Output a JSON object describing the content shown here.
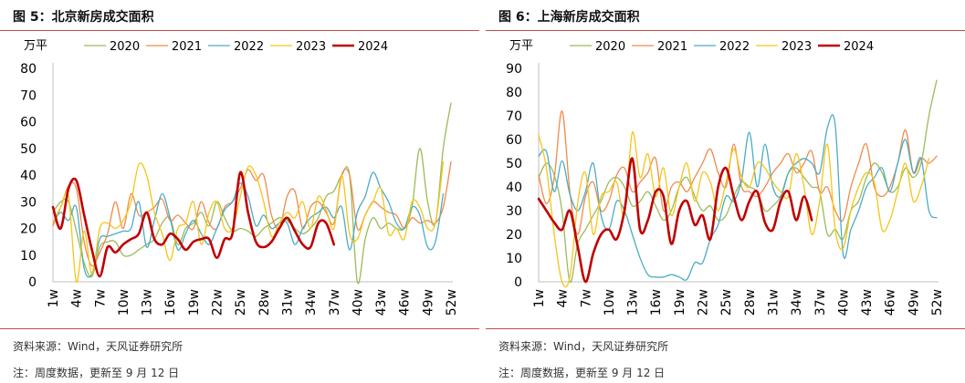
{
  "panels": [
    {
      "title": "图 5：北京新房成交面积",
      "source": "资料来源：Wind，天风证券研究所",
      "note": "注：周度数据，更新至 9 月 12 日",
      "chart_data": {
        "type": "line",
        "yunit": "万平",
        "ylim": [
          0,
          80
        ],
        "yticks": [
          0,
          10,
          20,
          30,
          40,
          50,
          60,
          70,
          80
        ],
        "xticks": [
          "1w",
          "4w",
          "7w",
          "10w",
          "13w",
          "16w",
          "19w",
          "22w",
          "25w",
          "28w",
          "31w",
          "34w",
          "37w",
          "40w",
          "43w",
          "46w",
          "49w",
          "52w"
        ],
        "grid": false,
        "legend": "top",
        "series": [
          {
            "name": "2020",
            "color": "#9bbb59",
            "width": 1.3,
            "values": [
              26,
              30,
              30,
              19,
              7,
              2,
              13,
              15,
              15,
              10,
              10,
              12,
              14,
              16,
              22,
              24,
              14,
              20,
              22,
              26,
              21,
              30,
              24,
              19,
              20,
              19,
              17,
              20,
              22,
              24,
              23,
              20,
              18,
              20,
              24,
              32,
              34,
              40,
              40,
              0,
              16,
              24,
              20,
              22,
              20,
              20,
              28,
              50,
              30,
              22,
              50,
              67
            ]
          },
          {
            "name": "2021",
            "color": "#f08a4b",
            "width": 1.3,
            "values": [
              21,
              28,
              36,
              35,
              15,
              6,
              11,
              18,
              30,
              20,
              33,
              25,
              26,
              28,
              31,
              23,
              25,
              22,
              20,
              30,
              22,
              20,
              28,
              30,
              35,
              42,
              38,
              40,
              25,
              20,
              32,
              34,
              20,
              28,
              30,
              26,
              22,
              40,
              40,
              20,
              25,
              30,
              28,
              26,
              25,
              20,
              24,
              22,
              23,
              22,
              28,
              45
            ]
          },
          {
            "name": "2022",
            "color": "#4bacc6",
            "width": 1.3,
            "values": [
              22,
              26,
              23,
              28,
              5,
              3,
              16,
              17,
              18,
              19,
              20,
              30,
              13,
              23,
              33,
              24,
              12,
              18,
              23,
              18,
              14,
              20,
              27,
              30,
              37,
              32,
              21,
              25,
              20,
              22,
              22,
              14,
              20,
              24,
              26,
              28,
              24,
              28,
              12,
              26,
              32,
              41,
              35,
              30,
              22,
              20,
              28,
              25,
              13,
              15,
              33
            ]
          },
          {
            "name": "2023",
            "color": "#f5c518",
            "width": 1.3,
            "values": [
              22,
              28,
              32,
              0,
              19,
              3,
              20,
              22,
              20,
              23,
              30,
              44,
              40,
              26,
              18,
              8,
              20,
              22,
              30,
              14,
              26,
              30,
              20,
              20,
              32,
              43,
              40,
              30,
              17,
              22,
              26,
              24,
              30,
              20,
              32,
              27,
              20,
              40,
              18,
              16,
              25,
              30,
              35,
              18,
              20,
              16,
              30,
              28,
              20,
              22,
              45
            ]
          },
          {
            "name": "2024",
            "color": "#c00000",
            "width": 2.6,
            "values": [
              28,
              20,
              35,
              38,
              25,
              12,
              2,
              13,
              11,
              14,
              16,
              18,
              26,
              16,
              14,
              18,
              16,
              12,
              15,
              16,
              16,
              9,
              16,
              18,
              41,
              26,
              15,
              13,
              15,
              20,
              24,
              19,
              14,
              13,
              22,
              22,
              14
            ]
          }
        ]
      }
    },
    {
      "title": "图 6：上海新房成交面积",
      "source": "资料来源：Wind，天风证券研究所",
      "note": "注：周度数据，更新至 9 月 12 日",
      "chart_data": {
        "type": "line",
        "yunit": "万平",
        "ylim": [
          0,
          90
        ],
        "yticks": [
          0,
          10,
          20,
          30,
          40,
          50,
          60,
          70,
          80,
          90
        ],
        "xticks": [
          "1w",
          "4w",
          "7w",
          "10w",
          "13w",
          "16w",
          "19w",
          "22w",
          "25w",
          "28w",
          "31w",
          "34w",
          "37w",
          "40w",
          "43w",
          "46w",
          "49w",
          "52w"
        ],
        "grid": false,
        "legend": "top",
        "series": [
          {
            "name": "2020",
            "color": "#9bbb59",
            "width": 1.3,
            "values": [
              44,
              50,
              45,
              30,
              0,
              16,
              22,
              28,
              34,
              42,
              44,
              40,
              32,
              34,
              38,
              32,
              26,
              30,
              40,
              44,
              36,
              30,
              32,
              26,
              28,
              36,
              42,
              40,
              38,
              30,
              32,
              36,
              46,
              48,
              44,
              40,
              38,
              20,
              22,
              18,
              30,
              34,
              44,
              50,
              46,
              38,
              40,
              48,
              44,
              50,
              70,
              85
            ]
          },
          {
            "name": "2021",
            "color": "#f08a4b",
            "width": 1.3,
            "values": [
              45,
              33,
              44,
              72,
              38,
              20,
              36,
              42,
              30,
              34,
              45,
              48,
              38,
              42,
              46,
              52,
              30,
              40,
              42,
              38,
              44,
              50,
              56,
              46,
              40,
              58,
              40,
              38,
              36,
              40,
              46,
              50,
              54,
              46,
              50,
              55,
              38,
              40,
              30,
              26,
              40,
              50,
              58,
              40,
              36,
              40,
              50,
              64,
              46,
              52,
              50,
              53
            ]
          },
          {
            "name": "2022",
            "color": "#4bacc6",
            "width": 1.3,
            "values": [
              53,
              55,
              38,
              51,
              37,
              30,
              38,
              50,
              28,
              22,
              34,
              30,
              20,
              10,
              3,
              2,
              2,
              3,
              2,
              1,
              8,
              8,
              18,
              24,
              36,
              34,
              43,
              63,
              40,
              58,
              40,
              36,
              46,
              50,
              52,
              50,
              46,
              65,
              66,
              12,
              22,
              30,
              40,
              44,
              48,
              38,
              50,
              60,
              46,
              52,
              30,
              27
            ]
          },
          {
            "name": "2023",
            "color": "#f5c518",
            "width": 1.3,
            "values": [
              62,
              48,
              20,
              0,
              2,
              33,
              46,
              20,
              36,
              38,
              42,
              28,
              63,
              44,
              54,
              36,
              48,
              28,
              40,
              50,
              34,
              46,
              42,
              30,
              42,
              56,
              44,
              40,
              50,
              48,
              42,
              38,
              36,
              54,
              40,
              20,
              34,
              58,
              22,
              14,
              30,
              40,
              46,
              42,
              22,
              26,
              38,
              50,
              34,
              40,
              52
            ]
          },
          {
            "name": "2024",
            "color": "#c00000",
            "width": 2.6,
            "values": [
              35,
              30,
              25,
              22,
              30,
              15,
              0,
              12,
              20,
              22,
              18,
              30,
              52,
              22,
              26,
              38,
              36,
              16,
              30,
              34,
              24,
              28,
              18,
              40,
              48,
              36,
              26,
              34,
              38,
              25,
              22,
              34,
              38,
              26,
              36,
              26
            ]
          }
        ]
      }
    }
  ]
}
